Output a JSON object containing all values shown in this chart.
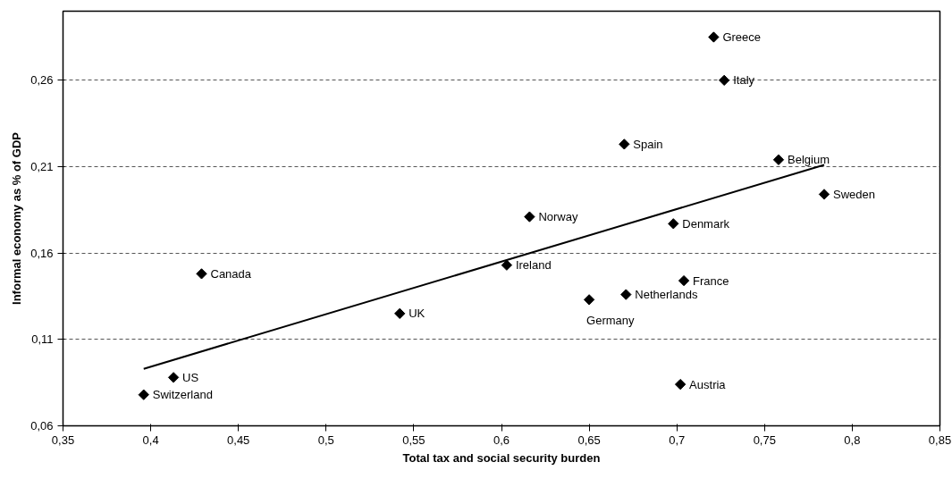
{
  "chart_data": {
    "type": "scatter",
    "xlabel": "Total tax and social security burden",
    "ylabel": "Informal economy as % of GDP",
    "xlim": [
      0.35,
      0.85
    ],
    "ylim": [
      0.06,
      0.3
    ],
    "xticks": [
      {
        "value": 0.35,
        "label": "0,35"
      },
      {
        "value": 0.4,
        "label": "0,4"
      },
      {
        "value": 0.45,
        "label": "0,45"
      },
      {
        "value": 0.5,
        "label": "0,5"
      },
      {
        "value": 0.55,
        "label": "0,55"
      },
      {
        "value": 0.6,
        "label": "0,6"
      },
      {
        "value": 0.65,
        "label": "0,65"
      },
      {
        "value": 0.7,
        "label": "0,7"
      },
      {
        "value": 0.75,
        "label": "0,75"
      },
      {
        "value": 0.8,
        "label": "0,8"
      },
      {
        "value": 0.85,
        "label": "0,85"
      }
    ],
    "yticks": [
      {
        "value": 0.06,
        "label": "0,06"
      },
      {
        "value": 0.11,
        "label": "0,11"
      },
      {
        "value": 0.16,
        "label": "0,16"
      },
      {
        "value": 0.21,
        "label": "0,21"
      },
      {
        "value": 0.26,
        "label": "0,26"
      }
    ],
    "grid": "y",
    "marker": "diamond",
    "series": [
      {
        "color": "#000000",
        "x": [
          0.721,
          0.727,
          0.67,
          0.758,
          0.784,
          0.616,
          0.698,
          0.603,
          0.429,
          0.704,
          0.671,
          0.65,
          0.542,
          0.702,
          0.413,
          0.396
        ],
        "values": [
          0.285,
          0.26,
          0.223,
          0.214,
          0.194,
          0.181,
          0.177,
          0.153,
          0.148,
          0.144,
          0.136,
          0.133,
          0.125,
          0.084,
          0.088,
          0.078
        ]
      },
      {
        "type": "line",
        "color": "#000000",
        "marker": "none",
        "line_style": "solid",
        "x": [
          0.396,
          0.784
        ],
        "values": [
          0.093,
          0.211
        ]
      }
    ],
    "annotations": [
      {
        "text": "Greece",
        "x": 0.721,
        "y": 0.285
      },
      {
        "text": "Italy",
        "x": 0.727,
        "y": 0.26
      },
      {
        "text": "Spain",
        "x": 0.67,
        "y": 0.223
      },
      {
        "text": "Belgium",
        "x": 0.758,
        "y": 0.214
      },
      {
        "text": "Sweden",
        "x": 0.784,
        "y": 0.194
      },
      {
        "text": "Norway",
        "x": 0.616,
        "y": 0.181
      },
      {
        "text": "Denmark",
        "x": 0.698,
        "y": 0.177
      },
      {
        "text": "Ireland",
        "x": 0.603,
        "y": 0.153
      },
      {
        "text": "Canada",
        "x": 0.429,
        "y": 0.148
      },
      {
        "text": "France",
        "x": 0.704,
        "y": 0.144
      },
      {
        "text": "Netherlands",
        "x": 0.671,
        "y": 0.136
      },
      {
        "text": "Germany",
        "x": 0.65,
        "y": 0.133
      },
      {
        "text": "UK",
        "x": 0.542,
        "y": 0.125
      },
      {
        "text": "Austria",
        "x": 0.702,
        "y": 0.084
      },
      {
        "text": "US",
        "x": 0.413,
        "y": 0.088
      },
      {
        "text": "Switzerland",
        "x": 0.396,
        "y": 0.078
      }
    ]
  }
}
